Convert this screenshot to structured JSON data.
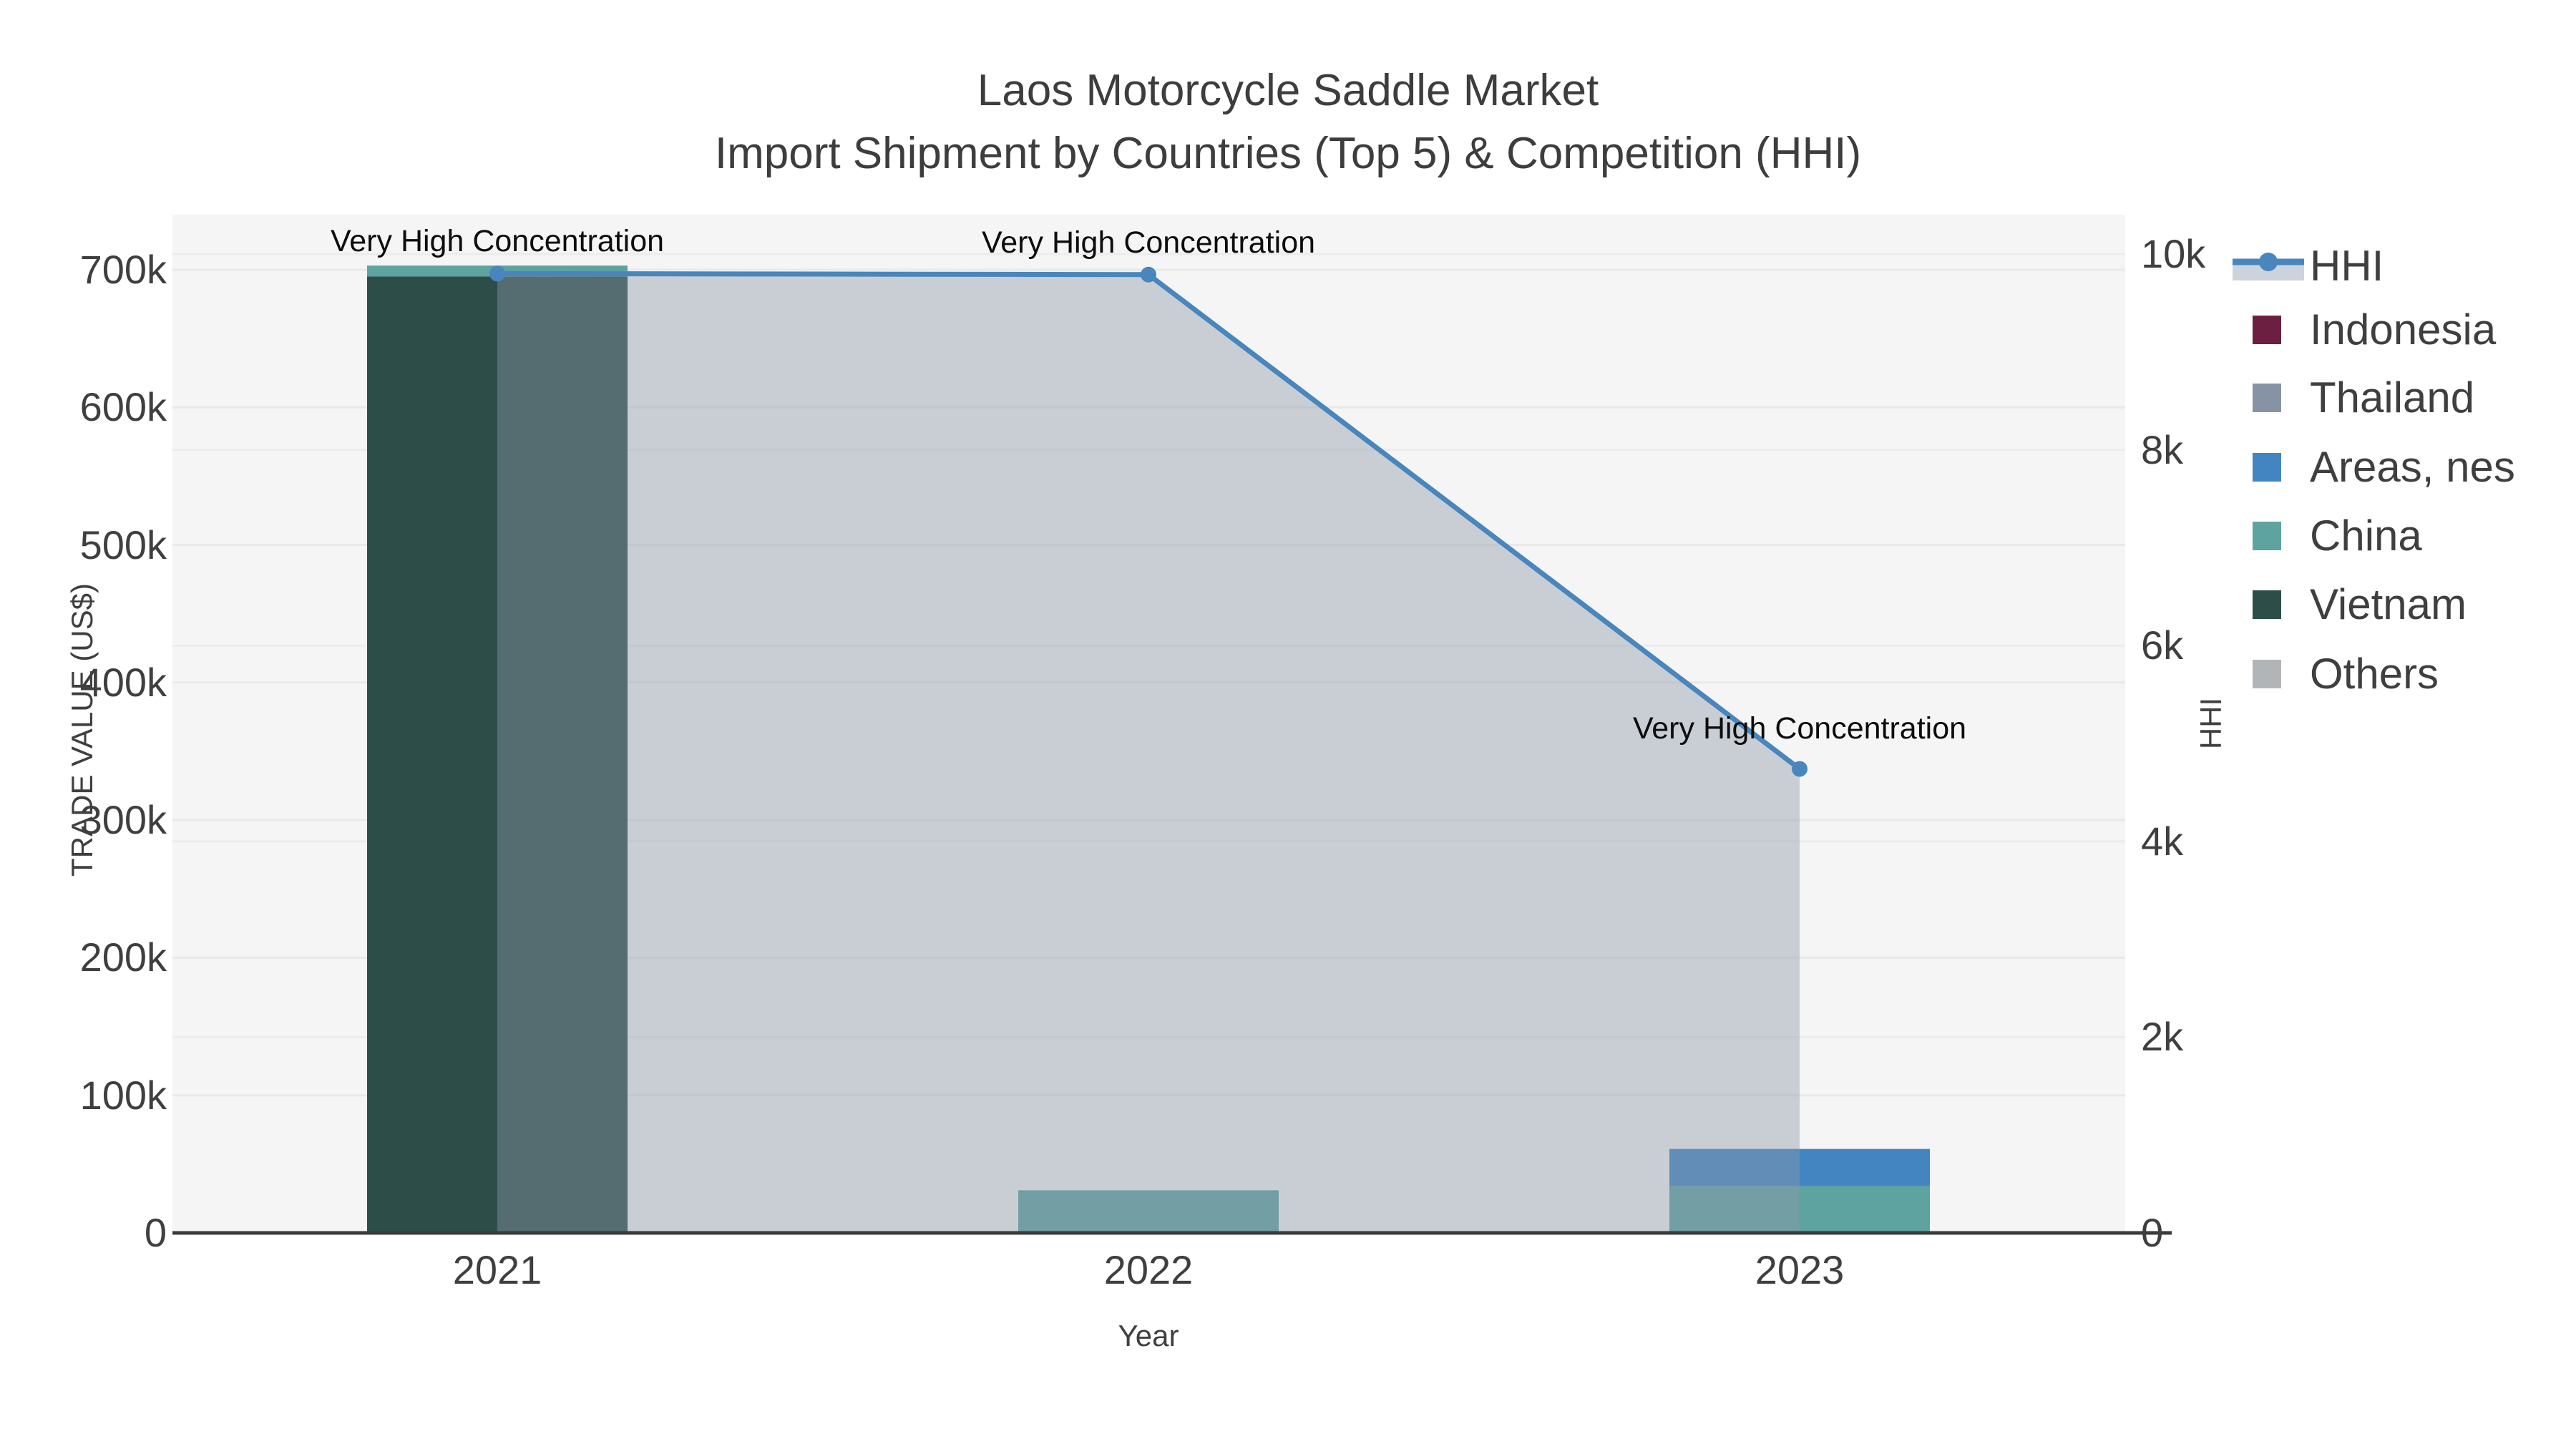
{
  "title": {
    "line1": "Laos Motorcycle Saddle Market",
    "line2": "Import Shipment by Countries (Top 5) & Competition (HHI)"
  },
  "chart_data": {
    "type": "bar+line",
    "title": "Laos Motorcycle Saddle Market — Import Shipment by Countries (Top 5) & Competition (HHI)",
    "categories": [
      "2021",
      "2022",
      "2023"
    ],
    "bar_series": [
      {
        "name": "Indonesia",
        "color": "#6d1f42",
        "values": [
          0,
          0,
          0
        ]
      },
      {
        "name": "Thailand",
        "color": "#8593a5",
        "values": [
          0,
          0,
          0
        ]
      },
      {
        "name": "Areas, nes",
        "color": "#4285c1",
        "values": [
          0,
          0,
          27000
        ]
      },
      {
        "name": "China",
        "color": "#5fa3a0",
        "values": [
          8000,
          31000,
          34000
        ]
      },
      {
        "name": "Vietnam",
        "color": "#2d4d49",
        "values": [
          695000,
          0,
          0
        ]
      },
      {
        "name": "Others",
        "color": "#b2b5b8",
        "values": [
          0,
          0,
          0
        ]
      }
    ],
    "stack_order_bottom_to_top": [
      "Others",
      "Vietnam",
      "China",
      "Areas, nes",
      "Thailand",
      "Indonesia"
    ],
    "line_series": {
      "name": "HHI",
      "color": "#4886bd",
      "values": [
        9800,
        9790,
        4740
      ],
      "area_fill": "rgba(141,153,170,0.42)",
      "legend_band_color": "#ccd3dc"
    },
    "annotations": [
      "Very High Concentration",
      "Very High Concentration",
      "Very High Concentration"
    ],
    "xlabel": "Year",
    "ylabel_left": "TRADE VALUE (US$)",
    "ylabel_right": "HHI",
    "y_left_ticks": [
      "0",
      "100k",
      "200k",
      "300k",
      "400k",
      "500k",
      "600k",
      "700k"
    ],
    "y_left_tick_values": [
      0,
      100000,
      200000,
      300000,
      400000,
      500000,
      600000,
      700000
    ],
    "y_right_ticks": [
      "0",
      "2k",
      "4k",
      "6k",
      "8k",
      "10k"
    ],
    "y_right_tick_values": [
      0,
      2000,
      4000,
      6000,
      8000,
      10000
    ],
    "legend_entries": [
      "HHI",
      "Indonesia",
      "Thailand",
      "Areas, nes",
      "China",
      "Vietnam",
      "Others"
    ],
    "legend_position": "right",
    "grid": true,
    "plot_bg_color": "#f5f5f5",
    "axis_line_color": "#3a3a3a"
  }
}
